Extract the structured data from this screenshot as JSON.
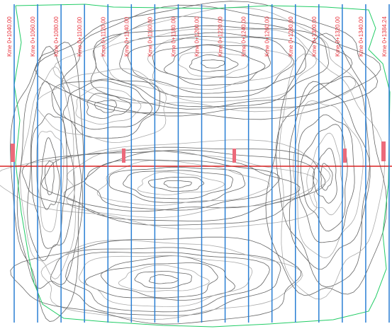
{
  "sections": {
    "labels": [
      "Kme 0+1040.00",
      "Kme 0+1060.00",
      "Kme 0+1080.00",
      "Kme 0+1100.00",
      "Kme 0+1120.00",
      "Kme 0+1140.00",
      "Kme 0+1160.00",
      "Kme 0+1180.00",
      "Kme 0+1200.00",
      "Kme 0+1220.00",
      "Kme 0+1240.00",
      "Kme 0+1260.00",
      "Kme 0+1280.00",
      "Kme 0+1300.00",
      "Kme 0+1320.00",
      "Kme 0+1340.00",
      "Kme 0+1384.24"
    ]
  }
}
